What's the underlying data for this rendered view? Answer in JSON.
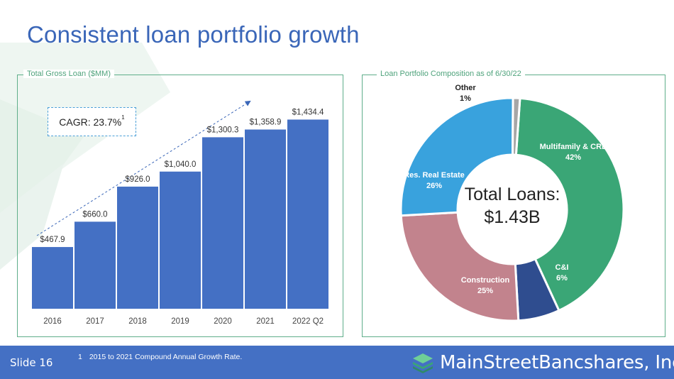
{
  "slide": {
    "title": "Consistent loan portfolio growth",
    "slide_number": "Slide 16",
    "footnote_marker": "1",
    "footnote": "2015 to 2021 Compound Annual Growth Rate."
  },
  "brand": {
    "name": "MainStreetBancshares, Inc.",
    "icon": "layered-stack-logo-icon",
    "icon_colors": [
      "#6fcf97",
      "#3aa676",
      "#2f6b9a"
    ]
  },
  "colors": {
    "title": "#3a66b8",
    "bar": "#4470c4",
    "panel_border": "#5fae8a",
    "footer": "#4470c4"
  },
  "left_panel": {
    "label": "Total Gross Loan ($MM)",
    "cagr_label": "CAGR: 23.7%",
    "cagr_superscript": "1"
  },
  "right_panel": {
    "label": "Loan Portfolio Composition as of 6/30/22",
    "center_line1": "Total Loans:",
    "center_line2": "$1.43B"
  },
  "chart_data": [
    {
      "type": "bar",
      "title": "Total Gross Loan ($MM)",
      "categories": [
        "2016",
        "2017",
        "2018",
        "2019",
        "2020",
        "2021",
        "2022 Q2"
      ],
      "values": [
        467.9,
        660.0,
        926.0,
        1040.0,
        1300.3,
        1358.9,
        1434.4
      ],
      "value_labels": [
        "$467.9",
        "$660.0",
        "$926.0",
        "$1,040.0",
        "$1,300.3",
        "$1,358.9",
        "$1,434.4"
      ],
      "ylim": [
        0,
        1550
      ],
      "grid": false,
      "annotation": "CAGR: 23.7%"
    },
    {
      "type": "pie",
      "donut": true,
      "title": "Loan Portfolio Composition as of 6/30/22",
      "slices": [
        {
          "label": "Multifamily & CRE",
          "value": 42,
          "pct_label": "42%",
          "color": "#3aa676"
        },
        {
          "label": "C&I",
          "value": 6,
          "pct_label": "6%",
          "color": "#2f4d8f"
        },
        {
          "label": "Construction",
          "value": 25,
          "pct_label": "25%",
          "color": "#c2838d"
        },
        {
          "label": "Res. Real Estate",
          "value": 26,
          "pct_label": "26%",
          "color": "#39a2dd"
        },
        {
          "label": "Other",
          "value": 1,
          "pct_label": "1%",
          "color": "#a6a6a6"
        }
      ]
    }
  ]
}
